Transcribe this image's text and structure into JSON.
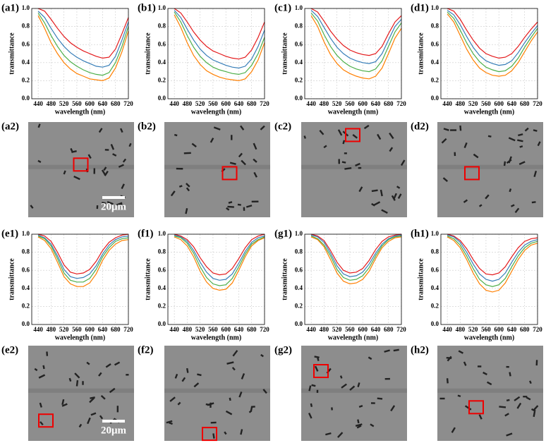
{
  "chart_data": [
    {
      "type": "line",
      "label": "(a1)",
      "xlabel": "wavelength (nm)",
      "ylabel": "transmittance",
      "x": [
        440,
        460,
        480,
        500,
        520,
        540,
        560,
        580,
        600,
        620,
        640,
        660,
        680,
        700,
        720
      ],
      "xlim": [
        420,
        720
      ],
      "xticks": [
        440,
        480,
        520,
        560,
        600,
        640,
        680,
        720
      ],
      "ylim": [
        0,
        1
      ],
      "yticks": [
        {
          "value": 0,
          "label": "0.0"
        },
        0.2,
        0.4,
        0.6,
        0.8,
        {
          "value": 1,
          "label": "1.0"
        }
      ],
      "grid": true,
      "series": [
        {
          "color": "#e41a1c",
          "values": [
            1.0,
            0.97,
            0.88,
            0.78,
            0.69,
            0.62,
            0.57,
            0.53,
            0.5,
            0.47,
            0.45,
            0.46,
            0.55,
            0.72,
            0.9
          ]
        },
        {
          "color": "#377eb8",
          "values": [
            0.97,
            0.9,
            0.78,
            0.67,
            0.58,
            0.51,
            0.46,
            0.42,
            0.39,
            0.36,
            0.35,
            0.37,
            0.47,
            0.65,
            0.85
          ]
        },
        {
          "color": "#4daf4a",
          "values": [
            0.95,
            0.84,
            0.7,
            0.58,
            0.48,
            0.41,
            0.36,
            0.32,
            0.29,
            0.27,
            0.26,
            0.29,
            0.4,
            0.58,
            0.8
          ]
        },
        {
          "color": "#ff7f00",
          "values": [
            0.92,
            0.78,
            0.62,
            0.5,
            0.4,
            0.33,
            0.28,
            0.25,
            0.22,
            0.21,
            0.2,
            0.23,
            0.34,
            0.52,
            0.75
          ]
        }
      ]
    },
    {
      "type": "line",
      "label": "(b1)",
      "xlabel": "wavelength (nm)",
      "ylabel": "transmittance",
      "x": [
        440,
        460,
        480,
        500,
        520,
        540,
        560,
        580,
        600,
        620,
        640,
        660,
        680,
        700,
        720
      ],
      "xlim": [
        420,
        720
      ],
      "xticks": [
        440,
        480,
        520,
        560,
        600,
        640,
        680,
        720
      ],
      "ylim": [
        0,
        1
      ],
      "yticks": [
        {
          "value": 0,
          "label": "0.0"
        },
        0.2,
        0.4,
        0.6,
        0.8,
        {
          "value": 1,
          "label": "1.0"
        }
      ],
      "grid": true,
      "series": [
        {
          "color": "#e41a1c",
          "values": [
            1.0,
            0.95,
            0.85,
            0.74,
            0.65,
            0.58,
            0.53,
            0.5,
            0.47,
            0.45,
            0.44,
            0.46,
            0.54,
            0.68,
            0.85
          ]
        },
        {
          "color": "#377eb8",
          "values": [
            0.98,
            0.9,
            0.77,
            0.65,
            0.55,
            0.48,
            0.43,
            0.4,
            0.37,
            0.35,
            0.34,
            0.36,
            0.44,
            0.58,
            0.76
          ]
        },
        {
          "color": "#4daf4a",
          "values": [
            0.96,
            0.85,
            0.7,
            0.57,
            0.47,
            0.4,
            0.35,
            0.32,
            0.3,
            0.28,
            0.27,
            0.29,
            0.37,
            0.5,
            0.68
          ]
        },
        {
          "color": "#ff7f00",
          "values": [
            0.93,
            0.79,
            0.62,
            0.48,
            0.38,
            0.31,
            0.27,
            0.24,
            0.22,
            0.21,
            0.2,
            0.22,
            0.3,
            0.43,
            0.62
          ]
        }
      ]
    },
    {
      "type": "line",
      "label": "(c1)",
      "xlabel": "wavelength (nm)",
      "ylabel": "transmittance",
      "x": [
        440,
        460,
        480,
        500,
        520,
        540,
        560,
        580,
        600,
        620,
        640,
        660,
        680,
        700,
        720
      ],
      "xlim": [
        420,
        720
      ],
      "xticks": [
        440,
        480,
        520,
        560,
        600,
        640,
        680,
        720
      ],
      "ylim": [
        0,
        1
      ],
      "yticks": [
        {
          "value": 0,
          "label": "0.0"
        },
        0.2,
        0.4,
        0.6,
        0.8,
        {
          "value": 1,
          "label": "1.0"
        }
      ],
      "grid": true,
      "series": [
        {
          "color": "#e41a1c",
          "values": [
            1.0,
            0.96,
            0.86,
            0.75,
            0.66,
            0.59,
            0.54,
            0.51,
            0.49,
            0.48,
            0.5,
            0.58,
            0.72,
            0.85,
            0.92
          ]
        },
        {
          "color": "#377eb8",
          "values": [
            0.98,
            0.91,
            0.79,
            0.67,
            0.57,
            0.5,
            0.45,
            0.42,
            0.4,
            0.39,
            0.41,
            0.5,
            0.65,
            0.8,
            0.88
          ]
        },
        {
          "color": "#4daf4a",
          "values": [
            0.95,
            0.86,
            0.71,
            0.58,
            0.48,
            0.41,
            0.36,
            0.33,
            0.31,
            0.3,
            0.33,
            0.42,
            0.58,
            0.74,
            0.84
          ]
        },
        {
          "color": "#ff7f00",
          "values": [
            0.92,
            0.8,
            0.63,
            0.49,
            0.39,
            0.32,
            0.28,
            0.25,
            0.23,
            0.22,
            0.25,
            0.34,
            0.5,
            0.67,
            0.78
          ]
        }
      ]
    },
    {
      "type": "line",
      "label": "(d1)",
      "xlabel": "wavelength (nm)",
      "ylabel": "transmittance",
      "x": [
        440,
        460,
        480,
        500,
        520,
        540,
        560,
        580,
        600,
        620,
        640,
        660,
        680,
        700,
        720
      ],
      "xlim": [
        420,
        720
      ],
      "xticks": [
        440,
        480,
        520,
        560,
        600,
        640,
        680,
        720
      ],
      "ylim": [
        0,
        1
      ],
      "yticks": [
        {
          "value": 0,
          "label": "0.0"
        },
        0.2,
        0.4,
        0.6,
        0.8,
        {
          "value": 1,
          "label": "1.0"
        }
      ],
      "grid": true,
      "series": [
        {
          "color": "#e41a1c",
          "values": [
            1.0,
            0.97,
            0.88,
            0.76,
            0.65,
            0.56,
            0.5,
            0.47,
            0.45,
            0.46,
            0.5,
            0.58,
            0.68,
            0.77,
            0.85
          ]
        },
        {
          "color": "#377eb8",
          "values": [
            0.98,
            0.93,
            0.82,
            0.69,
            0.57,
            0.48,
            0.42,
            0.39,
            0.37,
            0.38,
            0.42,
            0.51,
            0.62,
            0.72,
            0.81
          ]
        },
        {
          "color": "#4daf4a",
          "values": [
            0.96,
            0.89,
            0.76,
            0.62,
            0.5,
            0.41,
            0.35,
            0.32,
            0.3,
            0.31,
            0.36,
            0.45,
            0.57,
            0.68,
            0.78
          ]
        },
        {
          "color": "#ff7f00",
          "values": [
            0.94,
            0.85,
            0.7,
            0.55,
            0.43,
            0.34,
            0.29,
            0.26,
            0.25,
            0.26,
            0.31,
            0.4,
            0.52,
            0.64,
            0.74
          ]
        }
      ]
    },
    {
      "type": "line",
      "label": "(e1)",
      "xlabel": "wavelength (nm)",
      "ylabel": "transmittance",
      "x": [
        440,
        460,
        480,
        500,
        520,
        540,
        560,
        580,
        600,
        620,
        640,
        660,
        680,
        700,
        720
      ],
      "xlim": [
        420,
        720
      ],
      "xticks": [
        440,
        480,
        520,
        560,
        600,
        640,
        680,
        720
      ],
      "ylim": [
        0,
        1
      ],
      "yticks": [
        {
          "value": 0,
          "label": "0.0"
        },
        0.2,
        0.4,
        0.6,
        0.8,
        {
          "value": 1,
          "label": "1.0"
        }
      ],
      "grid": true,
      "series": [
        {
          "color": "#e41a1c",
          "values": [
            1.0,
            0.98,
            0.92,
            0.8,
            0.66,
            0.58,
            0.56,
            0.57,
            0.61,
            0.7,
            0.82,
            0.91,
            0.96,
            0.99,
            1.0
          ]
        },
        {
          "color": "#377eb8",
          "values": [
            0.99,
            0.96,
            0.89,
            0.76,
            0.61,
            0.53,
            0.51,
            0.52,
            0.56,
            0.65,
            0.78,
            0.88,
            0.94,
            0.97,
            0.98
          ]
        },
        {
          "color": "#4daf4a",
          "values": [
            0.98,
            0.95,
            0.87,
            0.73,
            0.57,
            0.49,
            0.47,
            0.47,
            0.51,
            0.61,
            0.75,
            0.85,
            0.92,
            0.95,
            0.96
          ]
        },
        {
          "color": "#ff7f00",
          "values": [
            0.97,
            0.93,
            0.84,
            0.69,
            0.53,
            0.45,
            0.42,
            0.42,
            0.46,
            0.56,
            0.71,
            0.82,
            0.89,
            0.93,
            0.94
          ]
        }
      ]
    },
    {
      "type": "line",
      "label": "(f1)",
      "xlabel": "wavelength (nm)",
      "ylabel": "transmittance",
      "x": [
        440,
        460,
        480,
        500,
        520,
        540,
        560,
        580,
        600,
        620,
        640,
        660,
        680,
        700,
        720
      ],
      "xlim": [
        420,
        720
      ],
      "xticks": [
        440,
        480,
        520,
        560,
        600,
        640,
        680,
        720
      ],
      "ylim": [
        0,
        1
      ],
      "yticks": [
        {
          "value": 0,
          "label": "0.0"
        },
        0.2,
        0.4,
        0.6,
        0.8,
        {
          "value": 1,
          "label": "1.0"
        }
      ],
      "grid": true,
      "series": [
        {
          "color": "#e41a1c",
          "values": [
            1.0,
            0.98,
            0.94,
            0.86,
            0.74,
            0.64,
            0.57,
            0.55,
            0.56,
            0.62,
            0.73,
            0.85,
            0.94,
            0.98,
            1.0
          ]
        },
        {
          "color": "#377eb8",
          "values": [
            0.99,
            0.97,
            0.92,
            0.82,
            0.69,
            0.58,
            0.51,
            0.49,
            0.5,
            0.56,
            0.68,
            0.81,
            0.91,
            0.96,
            0.98
          ]
        },
        {
          "color": "#4daf4a",
          "values": [
            0.98,
            0.96,
            0.9,
            0.79,
            0.64,
            0.52,
            0.45,
            0.43,
            0.44,
            0.51,
            0.64,
            0.78,
            0.89,
            0.94,
            0.97
          ]
        },
        {
          "color": "#ff7f00",
          "values": [
            0.97,
            0.94,
            0.87,
            0.75,
            0.59,
            0.47,
            0.4,
            0.38,
            0.39,
            0.46,
            0.6,
            0.75,
            0.87,
            0.93,
            0.96
          ]
        }
      ]
    },
    {
      "type": "line",
      "label": "(g1)",
      "xlabel": "wavelength (nm)",
      "ylabel": "transmittance",
      "x": [
        440,
        460,
        480,
        500,
        520,
        540,
        560,
        580,
        600,
        620,
        640,
        660,
        680,
        700,
        720
      ],
      "xlim": [
        420,
        720
      ],
      "xticks": [
        440,
        480,
        520,
        560,
        600,
        640,
        680,
        720
      ],
      "ylim": [
        0,
        1
      ],
      "yticks": [
        {
          "value": 0,
          "label": "0.0"
        },
        0.2,
        0.4,
        0.6,
        0.8,
        {
          "value": 1,
          "label": "1.0"
        }
      ],
      "grid": true,
      "series": [
        {
          "color": "#e41a1c",
          "values": [
            1.0,
            0.98,
            0.93,
            0.82,
            0.69,
            0.6,
            0.57,
            0.58,
            0.62,
            0.71,
            0.83,
            0.92,
            0.97,
            0.99,
            1.0
          ]
        },
        {
          "color": "#377eb8",
          "values": [
            0.99,
            0.97,
            0.91,
            0.79,
            0.65,
            0.56,
            0.53,
            0.54,
            0.58,
            0.67,
            0.79,
            0.89,
            0.95,
            0.98,
            0.99
          ]
        },
        {
          "color": "#4daf4a",
          "values": [
            0.98,
            0.95,
            0.88,
            0.76,
            0.61,
            0.52,
            0.49,
            0.5,
            0.54,
            0.63,
            0.76,
            0.87,
            0.94,
            0.97,
            0.98
          ]
        },
        {
          "color": "#ff7f00",
          "values": [
            0.97,
            0.94,
            0.86,
            0.72,
            0.57,
            0.48,
            0.45,
            0.46,
            0.5,
            0.59,
            0.73,
            0.85,
            0.92,
            0.96,
            0.97
          ]
        }
      ]
    },
    {
      "type": "line",
      "label": "(h1)",
      "xlabel": "wavelength (nm)",
      "ylabel": "transmittance",
      "x": [
        440,
        460,
        480,
        500,
        520,
        540,
        560,
        580,
        600,
        620,
        640,
        660,
        680,
        700,
        720
      ],
      "xlim": [
        420,
        720
      ],
      "xticks": [
        440,
        480,
        520,
        560,
        600,
        640,
        680,
        720
      ],
      "ylim": [
        0,
        1
      ],
      "yticks": [
        {
          "value": 0,
          "label": "0.0"
        },
        0.2,
        0.4,
        0.6,
        0.8,
        {
          "value": 1,
          "label": "1.0"
        }
      ],
      "grid": true,
      "series": [
        {
          "color": "#e41a1c",
          "values": [
            1.0,
            0.98,
            0.93,
            0.84,
            0.72,
            0.62,
            0.56,
            0.55,
            0.57,
            0.64,
            0.75,
            0.85,
            0.92,
            0.95,
            0.96
          ]
        },
        {
          "color": "#377eb8",
          "values": [
            0.99,
            0.97,
            0.91,
            0.8,
            0.67,
            0.56,
            0.5,
            0.48,
            0.5,
            0.57,
            0.69,
            0.8,
            0.88,
            0.92,
            0.94
          ]
        },
        {
          "color": "#4daf4a",
          "values": [
            0.98,
            0.95,
            0.88,
            0.76,
            0.62,
            0.5,
            0.44,
            0.42,
            0.44,
            0.51,
            0.64,
            0.76,
            0.85,
            0.9,
            0.92
          ]
        },
        {
          "color": "#ff7f00",
          "values": [
            0.97,
            0.93,
            0.85,
            0.72,
            0.57,
            0.45,
            0.38,
            0.36,
            0.38,
            0.46,
            0.59,
            0.72,
            0.82,
            0.88,
            0.9
          ]
        }
      ]
    }
  ],
  "images": [
    {
      "label": "(a2)",
      "scale_bar": "20μm"
    },
    {
      "label": "(b2)"
    },
    {
      "label": "(c2)"
    },
    {
      "label": "(d2)"
    },
    {
      "label": "(e2)",
      "scale_bar": "20μm"
    },
    {
      "label": "(f2)"
    },
    {
      "label": "(g2)"
    },
    {
      "label": "(h2)"
    }
  ]
}
